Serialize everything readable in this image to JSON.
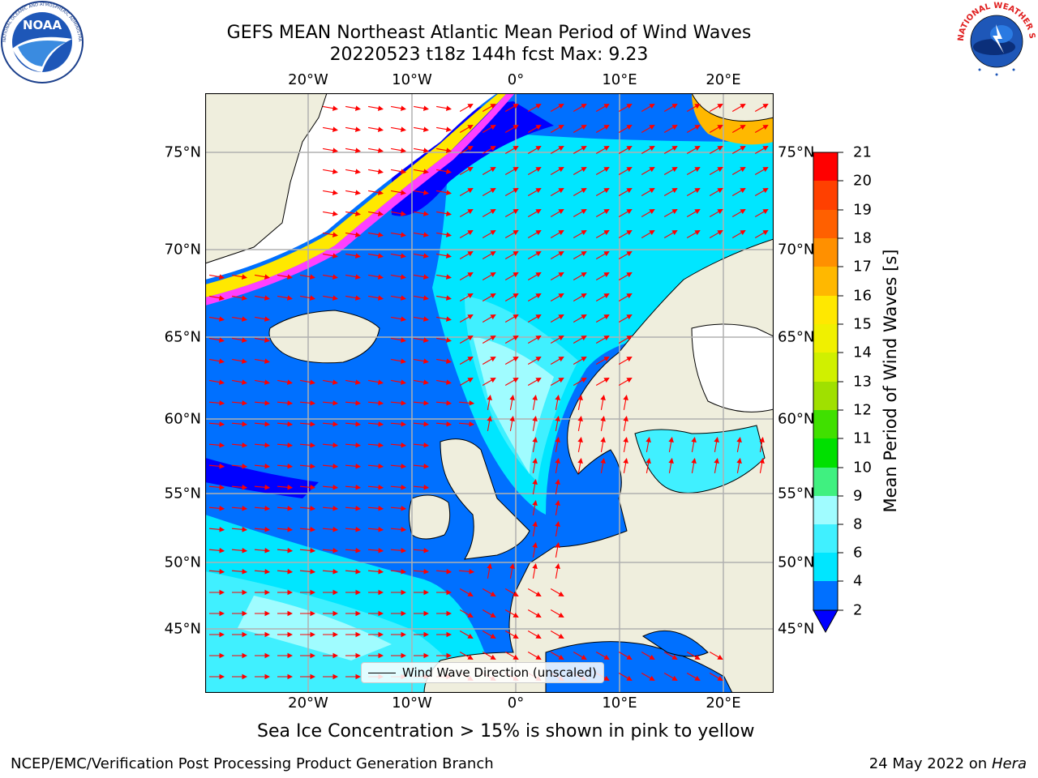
{
  "header": {
    "title_line1": "GEFS MEAN Northeast Atlantic Mean Period of Wind Waves",
    "title_line2": "20220523 t18z 144h fcst   Max: 9.23"
  },
  "logos": {
    "left": "NOAA",
    "left_ring_text": "NATIONAL OCEANIC AND ATMOSPHERIC ADMINISTRATION · U.S. DEPARTMENT OF COMMERCE",
    "right_ring_text": "NATIONAL WEATHER SERVICE"
  },
  "axes": {
    "lon_ticks": [
      "20°W",
      "10°W",
      "0°",
      "10°E",
      "20°E"
    ],
    "lat_ticks": [
      "75°N",
      "70°N",
      "65°N",
      "60°N",
      "55°N",
      "50°N",
      "45°N"
    ],
    "lon_range": [
      -30,
      24
    ],
    "lat_range": [
      41,
      79
    ],
    "grid": true
  },
  "legend": {
    "label": "Wind Wave Direction (unscaled)",
    "placement": "lower-center"
  },
  "colorbar": {
    "title": "Mean Period of Wind Waves [s]",
    "ticks": [
      "21",
      "20",
      "19",
      "18",
      "17",
      "16",
      "15",
      "14",
      "13",
      "12",
      "11",
      "10",
      "9",
      "8",
      "6",
      "4",
      "2"
    ],
    "bins": [
      {
        "from": 2,
        "to": 4,
        "color": "#0070ff"
      },
      {
        "from": 4,
        "to": 6,
        "color": "#00e6ff"
      },
      {
        "from": 6,
        "to": 8,
        "color": "#40f0ff"
      },
      {
        "from": 8,
        "to": 9,
        "color": "#a0fcff"
      },
      {
        "from": 9,
        "to": 10,
        "color": "#40f080"
      },
      {
        "from": 10,
        "to": 11,
        "color": "#00e000"
      },
      {
        "from": 11,
        "to": 12,
        "color": "#40e000"
      },
      {
        "from": 12,
        "to": 13,
        "color": "#a0e000"
      },
      {
        "from": 13,
        "to": 14,
        "color": "#d0f000"
      },
      {
        "from": 14,
        "to": 15,
        "color": "#f0f000"
      },
      {
        "from": 15,
        "to": 16,
        "color": "#ffe800"
      },
      {
        "from": 16,
        "to": 17,
        "color": "#ffb800"
      },
      {
        "from": 17,
        "to": 18,
        "color": "#ff9000"
      },
      {
        "from": 18,
        "to": 19,
        "color": "#ff6000"
      },
      {
        "from": 19,
        "to": 20,
        "color": "#ff4000"
      },
      {
        "from": 20,
        "to": 21,
        "color": "#ff0000"
      }
    ],
    "under_color": "#0000ff"
  },
  "colors": {
    "land": "#efeedd",
    "ice": "#ffffff",
    "arrow": "#ff0000",
    "grid": "#b0b0b0"
  },
  "note": "Sea Ice Concentration > 15% is shown in pink to yellow",
  "footer": {
    "left": "NCEP/EMC/Verification Post Processing Product Generation Branch",
    "date": "24 May 2022 on",
    "machine": "Hera"
  }
}
